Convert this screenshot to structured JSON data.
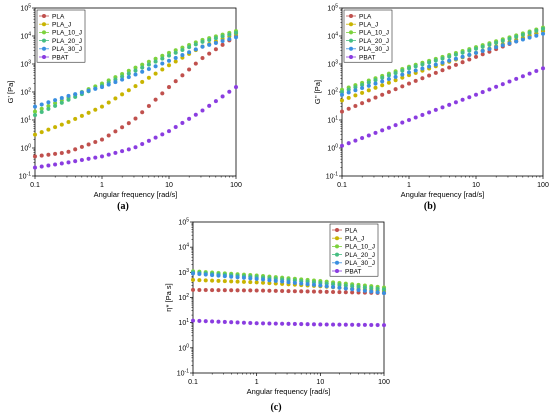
{
  "figure": {
    "panel_labels": [
      "(a)",
      "(b)",
      "(c)"
    ]
  },
  "colors": {
    "PLA": "#c0504d",
    "PLA_J": "#c8b400",
    "PLA_10_J": "#7cd23c",
    "PLA_20_J": "#46be82",
    "PLA_30_J": "#3a8fe0",
    "PBAT": "#8a3ce0"
  },
  "chart_data": [
    {
      "type": "scatter",
      "panel": "(a)",
      "xlabel": "Angular frequency [rad/s]",
      "ylabel": "G' [Pa]",
      "x_scale": "log",
      "y_scale": "log",
      "xlim": [
        0.1,
        100
      ],
      "ylim": [
        0.1,
        100000
      ],
      "x_ticks": [
        "0.1",
        "1",
        "10",
        "100"
      ],
      "y_ticks": [
        "10-1",
        "100",
        "101",
        "102",
        "103",
        "104",
        "105"
      ],
      "legend": "top-left",
      "series": [
        {
          "name": "PLA",
          "x_range": [
            0.1,
            100
          ],
          "points": [
            [
              0.1,
              0.5
            ],
            [
              0.3,
              0.7
            ],
            [
              1,
              2
            ],
            [
              3,
              10
            ],
            [
              10,
              150
            ],
            [
              30,
              1500
            ],
            [
              100,
              10000
            ]
          ]
        },
        {
          "name": "PLA_J",
          "x_range": [
            0.1,
            100
          ],
          "points": [
            [
              0.1,
              3
            ],
            [
              0.3,
              8
            ],
            [
              1,
              30
            ],
            [
              3,
              150
            ],
            [
              10,
              900
            ],
            [
              30,
              4000
            ],
            [
              100,
              12000
            ]
          ]
        },
        {
          "name": "PLA_10_J",
          "x_range": [
            0.1,
            100
          ],
          "points": [
            [
              0.1,
              20
            ],
            [
              0.3,
              60
            ],
            [
              1,
              200
            ],
            [
              3,
              700
            ],
            [
              10,
              2500
            ],
            [
              30,
              7000
            ],
            [
              100,
              15000
            ]
          ]
        },
        {
          "name": "PLA_20_J",
          "x_range": [
            0.1,
            100
          ],
          "points": [
            [
              0.1,
              15
            ],
            [
              0.3,
              50
            ],
            [
              1,
              170
            ],
            [
              3,
              550
            ],
            [
              10,
              2000
            ],
            [
              30,
              6000
            ],
            [
              100,
              13000
            ]
          ]
        },
        {
          "name": "PLA_30_J",
          "x_range": [
            0.1,
            100
          ],
          "points": [
            [
              0.1,
              30
            ],
            [
              0.3,
              70
            ],
            [
              1,
              150
            ],
            [
              3,
              400
            ],
            [
              10,
              1300
            ],
            [
              30,
              4000
            ],
            [
              100,
              9000
            ]
          ]
        },
        {
          "name": "PBAT",
          "x_range": [
            0.1,
            100
          ],
          "points": [
            [
              0.1,
              0.2
            ],
            [
              0.3,
              0.3
            ],
            [
              1,
              0.5
            ],
            [
              3,
              1
            ],
            [
              10,
              4
            ],
            [
              30,
              20
            ],
            [
              100,
              150
            ]
          ]
        }
      ]
    },
    {
      "type": "scatter",
      "panel": "(b)",
      "xlabel": "Angular frequency [rad/s]",
      "ylabel": "G'' [Pa]",
      "x_scale": "log",
      "y_scale": "log",
      "xlim": [
        0.1,
        100
      ],
      "ylim": [
        0.1,
        100000
      ],
      "x_ticks": [
        "0.1",
        "1",
        "10",
        "100"
      ],
      "y_ticks": [
        "10-1",
        "100",
        "101",
        "102",
        "103",
        "104",
        "105"
      ],
      "legend": "top-left",
      "series": [
        {
          "name": "PLA",
          "x_range": [
            0.1,
            100
          ],
          "points": [
            [
              0.1,
              20
            ],
            [
              1,
              200
            ],
            [
              10,
              1800
            ],
            [
              100,
              15000
            ]
          ]
        },
        {
          "name": "PLA_J",
          "x_range": [
            0.1,
            100
          ],
          "points": [
            [
              0.1,
              50
            ],
            [
              1,
              400
            ],
            [
              10,
              2500
            ],
            [
              100,
              15000
            ]
          ]
        },
        {
          "name": "PLA_10_J",
          "x_range": [
            0.1,
            100
          ],
          "points": [
            [
              0.1,
              120
            ],
            [
              1,
              800
            ],
            [
              10,
              4000
            ],
            [
              100,
              20000
            ]
          ]
        },
        {
          "name": "PLA_20_J",
          "x_range": [
            0.1,
            100
          ],
          "points": [
            [
              0.1,
              100
            ],
            [
              1,
              700
            ],
            [
              10,
              3500
            ],
            [
              100,
              18000
            ]
          ]
        },
        {
          "name": "PLA_30_J",
          "x_range": [
            0.1,
            100
          ],
          "points": [
            [
              0.1,
              80
            ],
            [
              1,
              500
            ],
            [
              10,
              2500
            ],
            [
              100,
              12000
            ]
          ]
        },
        {
          "name": "PBAT",
          "x_range": [
            0.1,
            100
          ],
          "points": [
            [
              0.1,
              1.2
            ],
            [
              1,
              10
            ],
            [
              10,
              80
            ],
            [
              100,
              700
            ]
          ]
        }
      ]
    },
    {
      "type": "scatter",
      "panel": "(c)",
      "xlabel": "Angular frequency [rad/s]",
      "ylabel": "η* [Pa s]",
      "x_scale": "log",
      "y_scale": "log",
      "xlim": [
        0.1,
        100
      ],
      "ylim": [
        0.1,
        100000
      ],
      "x_ticks": [
        "0.1",
        "1",
        "10",
        "100"
      ],
      "y_ticks": [
        "10-1",
        "100",
        "101",
        "102",
        "103",
        "104",
        "105"
      ],
      "legend": "top-right",
      "series": [
        {
          "name": "PLA",
          "x_range": [
            0.1,
            100
          ],
          "points": [
            [
              0.1,
              200
            ],
            [
              1,
              190
            ],
            [
              10,
              170
            ],
            [
              100,
              150
            ]
          ]
        },
        {
          "name": "PLA_J",
          "x_range": [
            0.1,
            100
          ],
          "points": [
            [
              0.1,
              500
            ],
            [
              1,
              400
            ],
            [
              10,
              280
            ],
            [
              100,
              180
            ]
          ]
        },
        {
          "name": "PLA_10_J",
          "x_range": [
            0.1,
            100
          ],
          "points": [
            [
              0.1,
              1100
            ],
            [
              1,
              750
            ],
            [
              10,
              450
            ],
            [
              100,
              250
            ]
          ]
        },
        {
          "name": "PLA_20_J",
          "x_range": [
            0.1,
            100
          ],
          "points": [
            [
              0.1,
              1000
            ],
            [
              1,
              650
            ],
            [
              10,
              380
            ],
            [
              100,
              210
            ]
          ]
        },
        {
          "name": "PLA_30_J",
          "x_range": [
            0.1,
            100
          ],
          "points": [
            [
              0.1,
              900
            ],
            [
              1,
              550
            ],
            [
              10,
              300
            ],
            [
              100,
              150
            ]
          ]
        },
        {
          "name": "PBAT",
          "x_range": [
            0.1,
            100
          ],
          "points": [
            [
              0.1,
              12
            ],
            [
              1,
              9.5
            ],
            [
              10,
              8.5
            ],
            [
              100,
              8
            ]
          ]
        }
      ]
    }
  ]
}
